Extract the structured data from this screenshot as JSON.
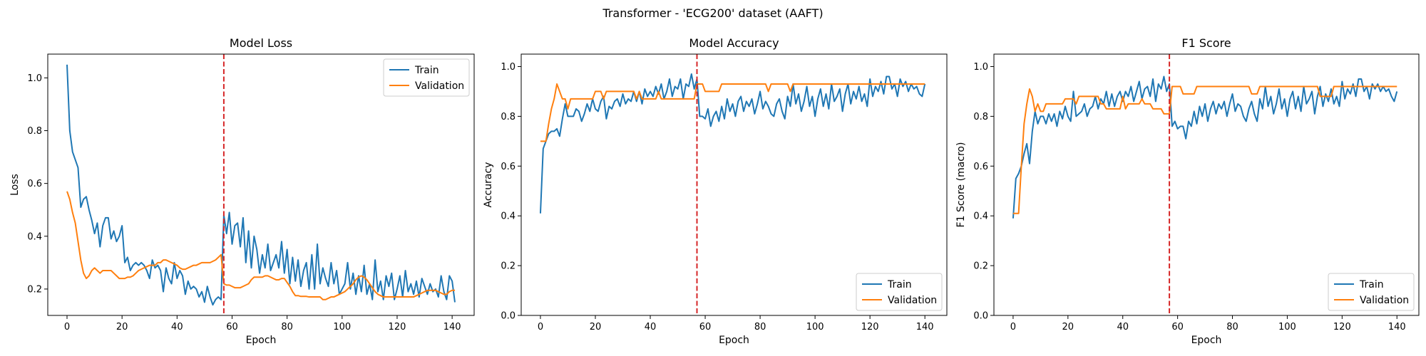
{
  "figure_title": "Transformer - 'ECG200' dataset (AAFT)",
  "colors": {
    "train": "#1f77b4",
    "validation": "#ff7f0e",
    "marker": "#d62728"
  },
  "chart_data": [
    {
      "type": "line",
      "title": "Model Loss",
      "xlabel": "Epoch",
      "ylabel": "Loss",
      "xlim": [
        -7,
        148
      ],
      "ylim": [
        0.1,
        1.09
      ],
      "xticks": [
        0,
        20,
        40,
        60,
        80,
        100,
        120,
        140
      ],
      "yticks": [
        0.2,
        0.4,
        0.6,
        0.8,
        1.0
      ],
      "ytick_labels": [
        "0.2",
        "0.4",
        "0.6",
        "0.8",
        "1.0"
      ],
      "vline_x": 57,
      "legend": "upper right",
      "series": [
        {
          "name": "Train",
          "key": "train",
          "x_start": 0,
          "values": [
            1.05,
            0.8,
            0.72,
            0.69,
            0.66,
            0.51,
            0.54,
            0.55,
            0.5,
            0.46,
            0.41,
            0.45,
            0.36,
            0.44,
            0.47,
            0.47,
            0.39,
            0.42,
            0.38,
            0.4,
            0.44,
            0.3,
            0.32,
            0.27,
            0.29,
            0.3,
            0.29,
            0.3,
            0.29,
            0.27,
            0.24,
            0.31,
            0.28,
            0.29,
            0.27,
            0.19,
            0.28,
            0.24,
            0.22,
            0.3,
            0.24,
            0.27,
            0.25,
            0.18,
            0.23,
            0.2,
            0.21,
            0.2,
            0.17,
            0.19,
            0.15,
            0.21,
            0.17,
            0.14,
            0.16,
            0.17,
            0.16,
            0.48,
            0.41,
            0.49,
            0.37,
            0.44,
            0.45,
            0.36,
            0.47,
            0.3,
            0.42,
            0.28,
            0.4,
            0.35,
            0.26,
            0.33,
            0.28,
            0.37,
            0.27,
            0.3,
            0.33,
            0.28,
            0.38,
            0.26,
            0.35,
            0.22,
            0.32,
            0.23,
            0.31,
            0.21,
            0.27,
            0.3,
            0.2,
            0.33,
            0.2,
            0.37,
            0.22,
            0.28,
            0.24,
            0.21,
            0.3,
            0.22,
            0.27,
            0.18,
            0.2,
            0.22,
            0.3,
            0.2,
            0.26,
            0.18,
            0.25,
            0.19,
            0.29,
            0.18,
            0.22,
            0.16,
            0.31,
            0.19,
            0.23,
            0.16,
            0.25,
            0.21,
            0.26,
            0.16,
            0.2,
            0.25,
            0.17,
            0.27,
            0.19,
            0.22,
            0.18,
            0.23,
            0.17,
            0.24,
            0.21,
            0.18,
            0.22,
            0.19,
            0.2,
            0.17,
            0.25,
            0.19,
            0.16,
            0.25,
            0.23,
            0.15
          ]
        },
        {
          "name": "Validation",
          "key": "validation",
          "x_start": 0,
          "values": [
            0.57,
            0.54,
            0.49,
            0.45,
            0.38,
            0.31,
            0.26,
            0.24,
            0.25,
            0.27,
            0.28,
            0.27,
            0.26,
            0.27,
            0.27,
            0.27,
            0.27,
            0.26,
            0.25,
            0.24,
            0.24,
            0.24,
            0.245,
            0.245,
            0.25,
            0.26,
            0.27,
            0.275,
            0.28,
            0.285,
            0.29,
            0.29,
            0.29,
            0.3,
            0.3,
            0.31,
            0.31,
            0.305,
            0.3,
            0.295,
            0.29,
            0.28,
            0.275,
            0.275,
            0.28,
            0.285,
            0.29,
            0.29,
            0.295,
            0.3,
            0.3,
            0.3,
            0.3,
            0.305,
            0.31,
            0.32,
            0.33,
            0.22,
            0.215,
            0.215,
            0.21,
            0.205,
            0.205,
            0.205,
            0.21,
            0.215,
            0.22,
            0.235,
            0.245,
            0.245,
            0.245,
            0.245,
            0.25,
            0.25,
            0.245,
            0.24,
            0.235,
            0.235,
            0.24,
            0.24,
            0.225,
            0.21,
            0.19,
            0.175,
            0.175,
            0.172,
            0.172,
            0.172,
            0.17,
            0.17,
            0.17,
            0.17,
            0.17,
            0.16,
            0.16,
            0.165,
            0.17,
            0.17,
            0.175,
            0.18,
            0.185,
            0.19,
            0.2,
            0.21,
            0.22,
            0.235,
            0.245,
            0.25,
            0.245,
            0.235,
            0.22,
            0.205,
            0.19,
            0.18,
            0.175,
            0.17,
            0.17,
            0.17,
            0.17,
            0.17,
            0.17,
            0.17,
            0.17,
            0.17,
            0.17,
            0.17,
            0.17,
            0.175,
            0.18,
            0.185,
            0.19,
            0.195,
            0.195,
            0.195,
            0.195,
            0.19,
            0.185,
            0.18,
            0.18,
            0.19,
            0.195,
            0.195
          ]
        }
      ]
    },
    {
      "type": "line",
      "title": "Model Accuracy",
      "xlabel": "Epoch",
      "ylabel": "Accuracy",
      "xlim": [
        -7,
        148
      ],
      "ylim": [
        0.0,
        1.05
      ],
      "xticks": [
        0,
        20,
        40,
        60,
        80,
        100,
        120,
        140
      ],
      "yticks": [
        0.0,
        0.2,
        0.4,
        0.6,
        0.8,
        1.0
      ],
      "ytick_labels": [
        "0.0",
        "0.2",
        "0.4",
        "0.6",
        "0.8",
        "1.0"
      ],
      "vline_x": 57,
      "legend": "lower right",
      "series": [
        {
          "name": "Train",
          "key": "train",
          "x_start": 0,
          "values": [
            0.41,
            0.67,
            0.7,
            0.73,
            0.74,
            0.74,
            0.75,
            0.72,
            0.79,
            0.85,
            0.8,
            0.8,
            0.8,
            0.83,
            0.82,
            0.78,
            0.81,
            0.85,
            0.82,
            0.87,
            0.83,
            0.82,
            0.86,
            0.88,
            0.79,
            0.84,
            0.83,
            0.86,
            0.87,
            0.84,
            0.89,
            0.85,
            0.87,
            0.86,
            0.9,
            0.86,
            0.9,
            0.85,
            0.91,
            0.88,
            0.9,
            0.88,
            0.92,
            0.89,
            0.93,
            0.87,
            0.9,
            0.95,
            0.88,
            0.92,
            0.91,
            0.95,
            0.87,
            0.93,
            0.92,
            0.97,
            0.91,
            0.95,
            0.8,
            0.8,
            0.79,
            0.83,
            0.76,
            0.8,
            0.82,
            0.78,
            0.84,
            0.79,
            0.87,
            0.82,
            0.85,
            0.8,
            0.86,
            0.88,
            0.82,
            0.86,
            0.84,
            0.87,
            0.81,
            0.85,
            0.9,
            0.83,
            0.86,
            0.84,
            0.81,
            0.8,
            0.85,
            0.87,
            0.82,
            0.79,
            0.88,
            0.84,
            0.93,
            0.85,
            0.89,
            0.82,
            0.86,
            0.92,
            0.84,
            0.88,
            0.8,
            0.87,
            0.91,
            0.84,
            0.89,
            0.83,
            0.93,
            0.86,
            0.88,
            0.91,
            0.82,
            0.89,
            0.93,
            0.85,
            0.9,
            0.87,
            0.92,
            0.86,
            0.89,
            0.84,
            0.95,
            0.88,
            0.92,
            0.9,
            0.94,
            0.89,
            0.96,
            0.96,
            0.91,
            0.93,
            0.88,
            0.95,
            0.92,
            0.94,
            0.9,
            0.93,
            0.91,
            0.92,
            0.89,
            0.88,
            0.93
          ]
        },
        {
          "name": "Validation",
          "key": "validation",
          "x_start": 0,
          "values": [
            0.7,
            0.7,
            0.7,
            0.77,
            0.83,
            0.87,
            0.93,
            0.9,
            0.87,
            0.87,
            0.83,
            0.87,
            0.87,
            0.87,
            0.87,
            0.87,
            0.87,
            0.87,
            0.87,
            0.87,
            0.9,
            0.9,
            0.9,
            0.87,
            0.9,
            0.9,
            0.9,
            0.9,
            0.9,
            0.9,
            0.9,
            0.9,
            0.9,
            0.9,
            0.9,
            0.87,
            0.9,
            0.87,
            0.87,
            0.87,
            0.87,
            0.87,
            0.87,
            0.9,
            0.87,
            0.87,
            0.87,
            0.87,
            0.87,
            0.87,
            0.87,
            0.87,
            0.87,
            0.87,
            0.87,
            0.87,
            0.87,
            0.93,
            0.93,
            0.93,
            0.9,
            0.9,
            0.9,
            0.9,
            0.9,
            0.9,
            0.93,
            0.93,
            0.93,
            0.93,
            0.93,
            0.93,
            0.93,
            0.93,
            0.93,
            0.93,
            0.93,
            0.93,
            0.93,
            0.93,
            0.93,
            0.93,
            0.93,
            0.9,
            0.93,
            0.93,
            0.93,
            0.93,
            0.93,
            0.93,
            0.93,
            0.9,
            0.93,
            0.93,
            0.93,
            0.93,
            0.93,
            0.93,
            0.93,
            0.93,
            0.93,
            0.93,
            0.93,
            0.93,
            0.93,
            0.93,
            0.93,
            0.93,
            0.93,
            0.93,
            0.93,
            0.93,
            0.93,
            0.93,
            0.93,
            0.93,
            0.93,
            0.93,
            0.93,
            0.93,
            0.93,
            0.93,
            0.93,
            0.93,
            0.93,
            0.93,
            0.93,
            0.93,
            0.93,
            0.93,
            0.93,
            0.93,
            0.93,
            0.93,
            0.93,
            0.93,
            0.93,
            0.93,
            0.93,
            0.93,
            0.93
          ]
        }
      ]
    },
    {
      "type": "line",
      "title": "F1 Score",
      "xlabel": "Epoch",
      "ylabel": "F1 Score (macro)",
      "xlim": [
        -7,
        148
      ],
      "ylim": [
        0.0,
        1.05
      ],
      "xticks": [
        0,
        20,
        40,
        60,
        80,
        100,
        120,
        140
      ],
      "yticks": [
        0.0,
        0.2,
        0.4,
        0.6,
        0.8,
        1.0
      ],
      "ytick_labels": [
        "0.0",
        "0.2",
        "0.4",
        "0.6",
        "0.8",
        "1.0"
      ],
      "vline_x": 57,
      "legend": "lower right",
      "series": [
        {
          "name": "Train",
          "key": "train",
          "x_start": 0,
          "values": [
            0.39,
            0.55,
            0.57,
            0.6,
            0.65,
            0.69,
            0.61,
            0.74,
            0.82,
            0.77,
            0.8,
            0.8,
            0.77,
            0.81,
            0.78,
            0.81,
            0.76,
            0.82,
            0.79,
            0.84,
            0.8,
            0.78,
            0.9,
            0.8,
            0.81,
            0.82,
            0.85,
            0.8,
            0.83,
            0.84,
            0.88,
            0.83,
            0.87,
            0.85,
            0.9,
            0.84,
            0.89,
            0.84,
            0.88,
            0.9,
            0.86,
            0.9,
            0.88,
            0.92,
            0.86,
            0.9,
            0.94,
            0.87,
            0.91,
            0.92,
            0.88,
            0.95,
            0.86,
            0.93,
            0.91,
            0.96,
            0.9,
            0.93,
            0.76,
            0.78,
            0.75,
            0.76,
            0.76,
            0.71,
            0.78,
            0.76,
            0.82,
            0.77,
            0.84,
            0.8,
            0.85,
            0.78,
            0.83,
            0.86,
            0.81,
            0.85,
            0.83,
            0.86,
            0.8,
            0.85,
            0.89,
            0.82,
            0.85,
            0.84,
            0.8,
            0.78,
            0.83,
            0.86,
            0.81,
            0.78,
            0.87,
            0.83,
            0.92,
            0.84,
            0.88,
            0.81,
            0.85,
            0.91,
            0.83,
            0.87,
            0.8,
            0.87,
            0.9,
            0.83,
            0.88,
            0.82,
            0.92,
            0.85,
            0.87,
            0.9,
            0.81,
            0.88,
            0.92,
            0.84,
            0.89,
            0.86,
            0.91,
            0.85,
            0.88,
            0.84,
            0.94,
            0.87,
            0.91,
            0.89,
            0.93,
            0.88,
            0.95,
            0.95,
            0.9,
            0.92,
            0.87,
            0.93,
            0.91,
            0.93,
            0.9,
            0.92,
            0.9,
            0.91,
            0.88,
            0.86,
            0.9
          ]
        },
        {
          "name": "Validation",
          "key": "validation",
          "x_start": 0,
          "values": [
            0.41,
            0.41,
            0.41,
            0.6,
            0.77,
            0.85,
            0.91,
            0.88,
            0.82,
            0.85,
            0.82,
            0.82,
            0.85,
            0.85,
            0.85,
            0.85,
            0.85,
            0.85,
            0.85,
            0.87,
            0.87,
            0.87,
            0.87,
            0.85,
            0.88,
            0.88,
            0.88,
            0.88,
            0.88,
            0.88,
            0.88,
            0.88,
            0.85,
            0.85,
            0.83,
            0.83,
            0.83,
            0.83,
            0.83,
            0.83,
            0.88,
            0.83,
            0.85,
            0.85,
            0.85,
            0.85,
            0.85,
            0.87,
            0.85,
            0.85,
            0.85,
            0.83,
            0.83,
            0.83,
            0.83,
            0.81,
            0.81,
            0.81,
            0.92,
            0.92,
            0.92,
            0.92,
            0.89,
            0.89,
            0.89,
            0.89,
            0.89,
            0.92,
            0.92,
            0.92,
            0.92,
            0.92,
            0.92,
            0.92,
            0.92,
            0.92,
            0.92,
            0.92,
            0.92,
            0.92,
            0.92,
            0.92,
            0.92,
            0.92,
            0.92,
            0.92,
            0.92,
            0.89,
            0.89,
            0.89,
            0.92,
            0.92,
            0.92,
            0.92,
            0.92,
            0.92,
            0.92,
            0.92,
            0.92,
            0.92,
            0.92,
            0.92,
            0.92,
            0.92,
            0.92,
            0.92,
            0.92,
            0.92,
            0.92,
            0.92,
            0.92,
            0.92,
            0.88,
            0.88,
            0.88,
            0.88,
            0.88,
            0.92,
            0.92,
            0.92,
            0.92,
            0.92,
            0.92,
            0.92,
            0.92,
            0.92,
            0.92,
            0.92,
            0.92,
            0.92,
            0.92,
            0.92,
            0.92,
            0.92,
            0.92,
            0.92,
            0.92,
            0.92,
            0.92,
            0.92,
            0.92
          ]
        }
      ]
    }
  ]
}
